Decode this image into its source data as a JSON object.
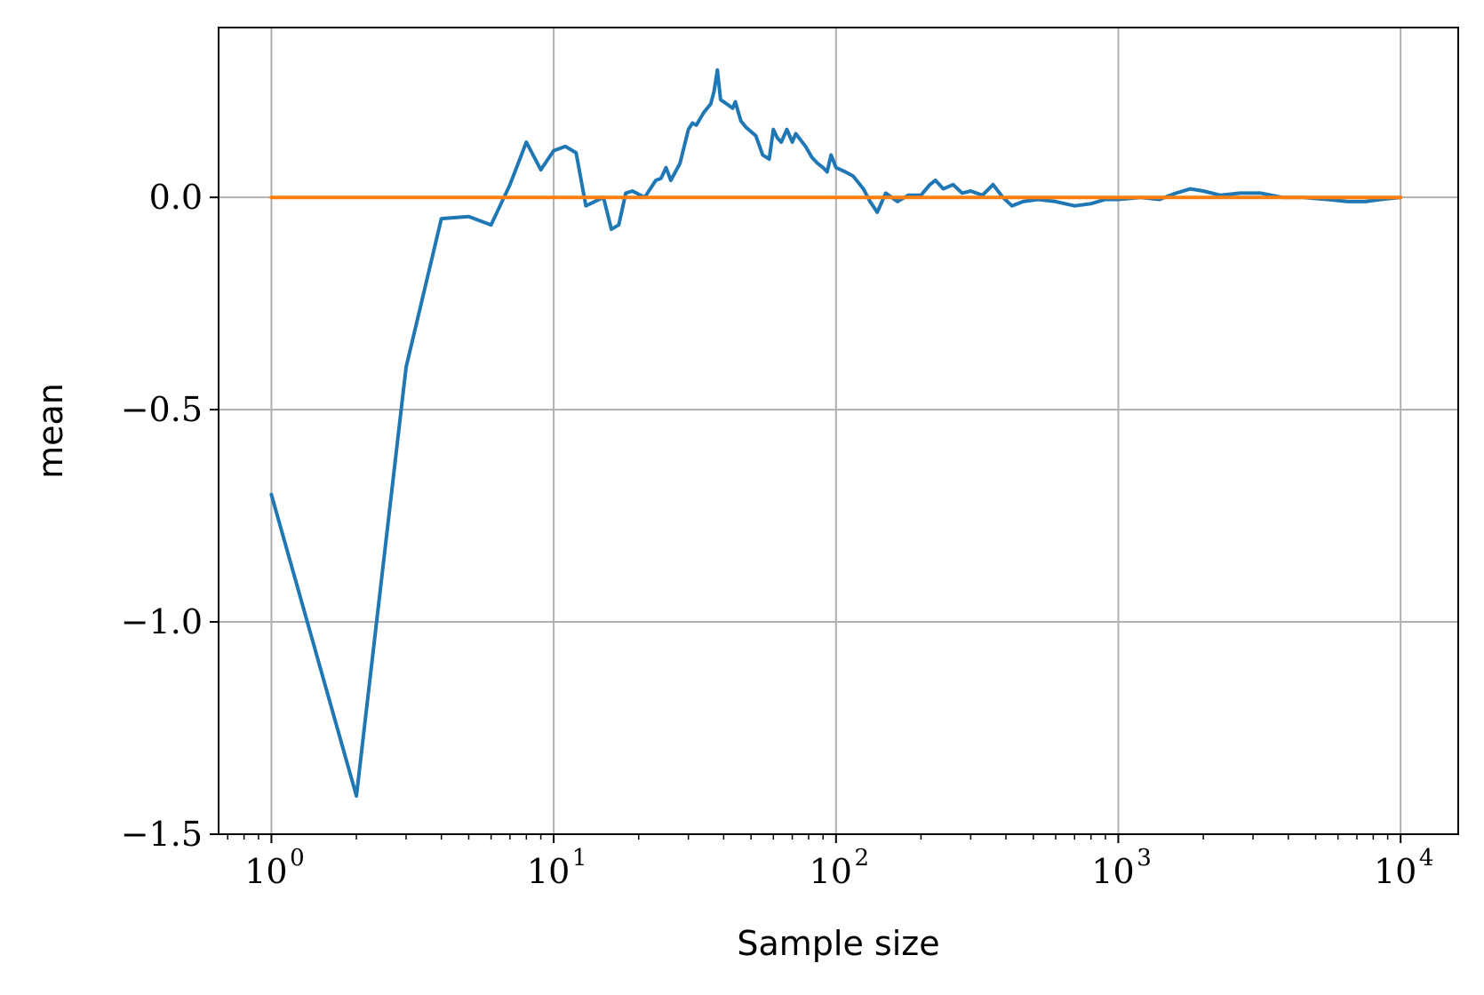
{
  "chart_data": {
    "type": "line",
    "title": "",
    "xlabel": "Sample size",
    "ylabel": "mean",
    "xscale": "log",
    "xlim": [
      0.65,
      16000
    ],
    "ylim": [
      -1.5,
      0.4
    ],
    "grid": true,
    "x_ticks": [
      {
        "base": "10",
        "exp": "0",
        "value": 1
      },
      {
        "base": "10",
        "exp": "1",
        "value": 10
      },
      {
        "base": "10",
        "exp": "2",
        "value": 100
      },
      {
        "base": "10",
        "exp": "3",
        "value": 1000
      },
      {
        "base": "10",
        "exp": "4",
        "value": 10000
      }
    ],
    "y_ticks": [
      {
        "label": "0.0",
        "value": 0.0
      },
      {
        "label": "−0.5",
        "value": -0.5
      },
      {
        "label": "−1.0",
        "value": -1.0
      },
      {
        "label": "−1.5",
        "value": -1.5
      }
    ],
    "series": [
      {
        "color": "#1f77b4",
        "points": [
          [
            1,
            -0.7
          ],
          [
            2,
            -1.41
          ],
          [
            3,
            -0.4
          ],
          [
            4,
            -0.05
          ],
          [
            5,
            -0.045
          ],
          [
            6,
            -0.065
          ],
          [
            7,
            0.03
          ],
          [
            8,
            0.13
          ],
          [
            9,
            0.065
          ],
          [
            10,
            0.11
          ],
          [
            11,
            0.12
          ],
          [
            12,
            0.105
          ],
          [
            13,
            -0.02
          ],
          [
            15,
            0.0
          ],
          [
            16,
            -0.075
          ],
          [
            17,
            -0.065
          ],
          [
            18,
            0.01
          ],
          [
            19,
            0.015
          ],
          [
            21,
            0.0
          ],
          [
            23,
            0.04
          ],
          [
            24,
            0.045
          ],
          [
            25,
            0.07
          ],
          [
            26,
            0.04
          ],
          [
            28,
            0.08
          ],
          [
            30,
            0.16
          ],
          [
            31,
            0.175
          ],
          [
            32,
            0.17
          ],
          [
            34,
            0.2
          ],
          [
            36,
            0.22
          ],
          [
            37,
            0.25
          ],
          [
            38,
            0.3
          ],
          [
            39,
            0.23
          ],
          [
            41,
            0.22
          ],
          [
            43,
            0.21
          ],
          [
            44,
            0.225
          ],
          [
            46,
            0.18
          ],
          [
            48,
            0.165
          ],
          [
            52,
            0.145
          ],
          [
            55,
            0.1
          ],
          [
            58,
            0.09
          ],
          [
            60,
            0.16
          ],
          [
            62,
            0.14
          ],
          [
            64,
            0.13
          ],
          [
            67,
            0.16
          ],
          [
            70,
            0.13
          ],
          [
            72,
            0.15
          ],
          [
            78,
            0.12
          ],
          [
            82,
            0.095
          ],
          [
            86,
            0.08
          ],
          [
            90,
            0.07
          ],
          [
            93,
            0.06
          ],
          [
            96,
            0.1
          ],
          [
            100,
            0.07
          ],
          [
            108,
            0.06
          ],
          [
            115,
            0.05
          ],
          [
            125,
            0.02
          ],
          [
            132,
            -0.01
          ],
          [
            140,
            -0.035
          ],
          [
            150,
            0.01
          ],
          [
            165,
            -0.01
          ],
          [
            180,
            0.005
          ],
          [
            200,
            0.005
          ],
          [
            215,
            0.03
          ],
          [
            225,
            0.04
          ],
          [
            240,
            0.02
          ],
          [
            260,
            0.03
          ],
          [
            280,
            0.01
          ],
          [
            300,
            0.015
          ],
          [
            330,
            0.005
          ],
          [
            360,
            0.03
          ],
          [
            390,
            0.0
          ],
          [
            420,
            -0.02
          ],
          [
            460,
            -0.01
          ],
          [
            520,
            -0.005
          ],
          [
            600,
            -0.01
          ],
          [
            700,
            -0.02
          ],
          [
            800,
            -0.015
          ],
          [
            900,
            -0.005
          ],
          [
            1000,
            -0.005
          ],
          [
            1200,
            0.0
          ],
          [
            1400,
            -0.005
          ],
          [
            1600,
            0.01
          ],
          [
            1800,
            0.02
          ],
          [
            2000,
            0.015
          ],
          [
            2300,
            0.005
          ],
          [
            2700,
            0.01
          ],
          [
            3200,
            0.01
          ],
          [
            3800,
            0.0
          ],
          [
            4500,
            0.0
          ],
          [
            5500,
            -0.005
          ],
          [
            6500,
            -0.01
          ],
          [
            7500,
            -0.01
          ],
          [
            8500,
            -0.005
          ],
          [
            10000,
            0.0
          ]
        ]
      },
      {
        "color": "#ff7f0e",
        "points": [
          [
            1,
            0.0
          ],
          [
            10000,
            0.0
          ]
        ]
      }
    ]
  }
}
